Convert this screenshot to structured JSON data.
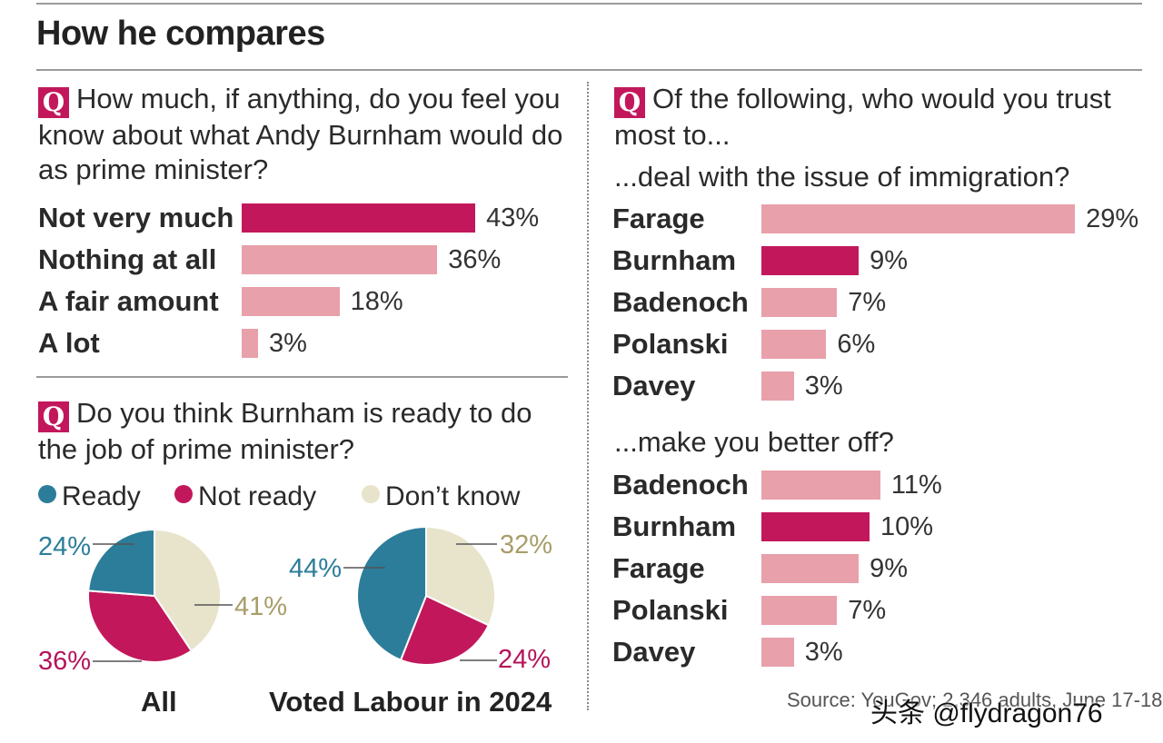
{
  "header": {
    "title": "How he compares"
  },
  "q_icon": "Q",
  "colors": {
    "accent": "#c2185b",
    "pale": "#e8a0aa",
    "blue": "#2c7d9a",
    "beige": "#e8e4cc",
    "beige_text": "#a89d6a"
  },
  "chart_data": [
    {
      "type": "bar",
      "title": "How much, if anything, do you feel you know about what Andy Burnham would do as prime minister?",
      "categories": [
        "Not very much",
        "Nothing at all",
        "A fair amount",
        "A lot"
      ],
      "values": [
        43,
        36,
        18,
        3
      ],
      "value_labels": [
        "43%",
        "36%",
        "18%",
        "3%"
      ],
      "highlight": [
        true,
        false,
        false,
        false
      ]
    },
    {
      "type": "pie",
      "title": "Do you think Burnham is ready to do the job of prime minister?",
      "legend": [
        "Ready",
        "Not ready",
        "Don’t know"
      ],
      "pies": [
        {
          "label": "All",
          "values": [
            24,
            36,
            41
          ],
          "value_labels": [
            "24%",
            "36%",
            "41%"
          ]
        },
        {
          "label": "Voted Labour in 2024",
          "values": [
            44,
            24,
            32
          ],
          "value_labels": [
            "44%",
            "24%",
            "32%"
          ]
        }
      ]
    },
    {
      "type": "bar",
      "title": "Of the following, who would you trust most to...",
      "subtitle": "...deal with the issue of immigration?",
      "categories": [
        "Farage",
        "Burnham",
        "Badenoch",
        "Polanski",
        "Davey"
      ],
      "values": [
        29,
        9,
        7,
        6,
        3
      ],
      "value_labels": [
        "29%",
        "9%",
        "7%",
        "6%",
        "3%"
      ],
      "highlight": [
        false,
        true,
        false,
        false,
        false
      ]
    },
    {
      "type": "bar",
      "subtitle": "...make you better off?",
      "categories": [
        "Badenoch",
        "Burnham",
        "Farage",
        "Polanski",
        "Davey"
      ],
      "values": [
        11,
        10,
        9,
        7,
        3
      ],
      "value_labels": [
        "11%",
        "10%",
        "9%",
        "7%",
        "3%"
      ],
      "highlight": [
        false,
        true,
        false,
        false,
        false
      ]
    }
  ],
  "footer": {
    "source": "Source: YouGov; 2,346 adults, June 17-18",
    "watermark": "头条 @flydragon76"
  }
}
